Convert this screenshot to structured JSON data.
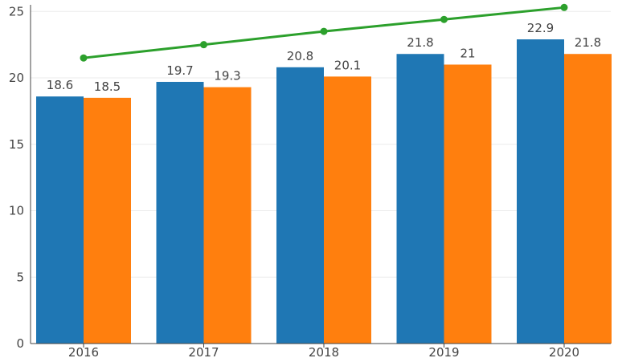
{
  "chart_data": {
    "type": "bar",
    "categories": [
      "2016",
      "2017",
      "2018",
      "2019",
      "2020"
    ],
    "series": [
      {
        "kind": "bar",
        "color": "#1f77b4",
        "values": [
          18.6,
          19.7,
          20.8,
          21.8,
          22.9
        ]
      },
      {
        "kind": "bar",
        "color": "#ff7f0e",
        "values": [
          18.5,
          19.3,
          20.1,
          21,
          21.8
        ]
      },
      {
        "kind": "line",
        "color": "#2ca02c",
        "values": [
          21.5,
          22.5,
          23.5,
          24.4,
          25.3
        ]
      }
    ],
    "bar_labels": [
      [
        "18.6",
        "19.7",
        "20.8",
        "21.8",
        "22.9"
      ],
      [
        "18.5",
        "19.3",
        "20.1",
        "21",
        "21.8"
      ]
    ],
    "y_ticks": [
      "0",
      "5",
      "10",
      "15",
      "20",
      "25"
    ],
    "ylim": [
      0,
      25.5
    ],
    "grid": true,
    "legend": "none",
    "title": "",
    "xlabel": "",
    "ylabel": ""
  }
}
